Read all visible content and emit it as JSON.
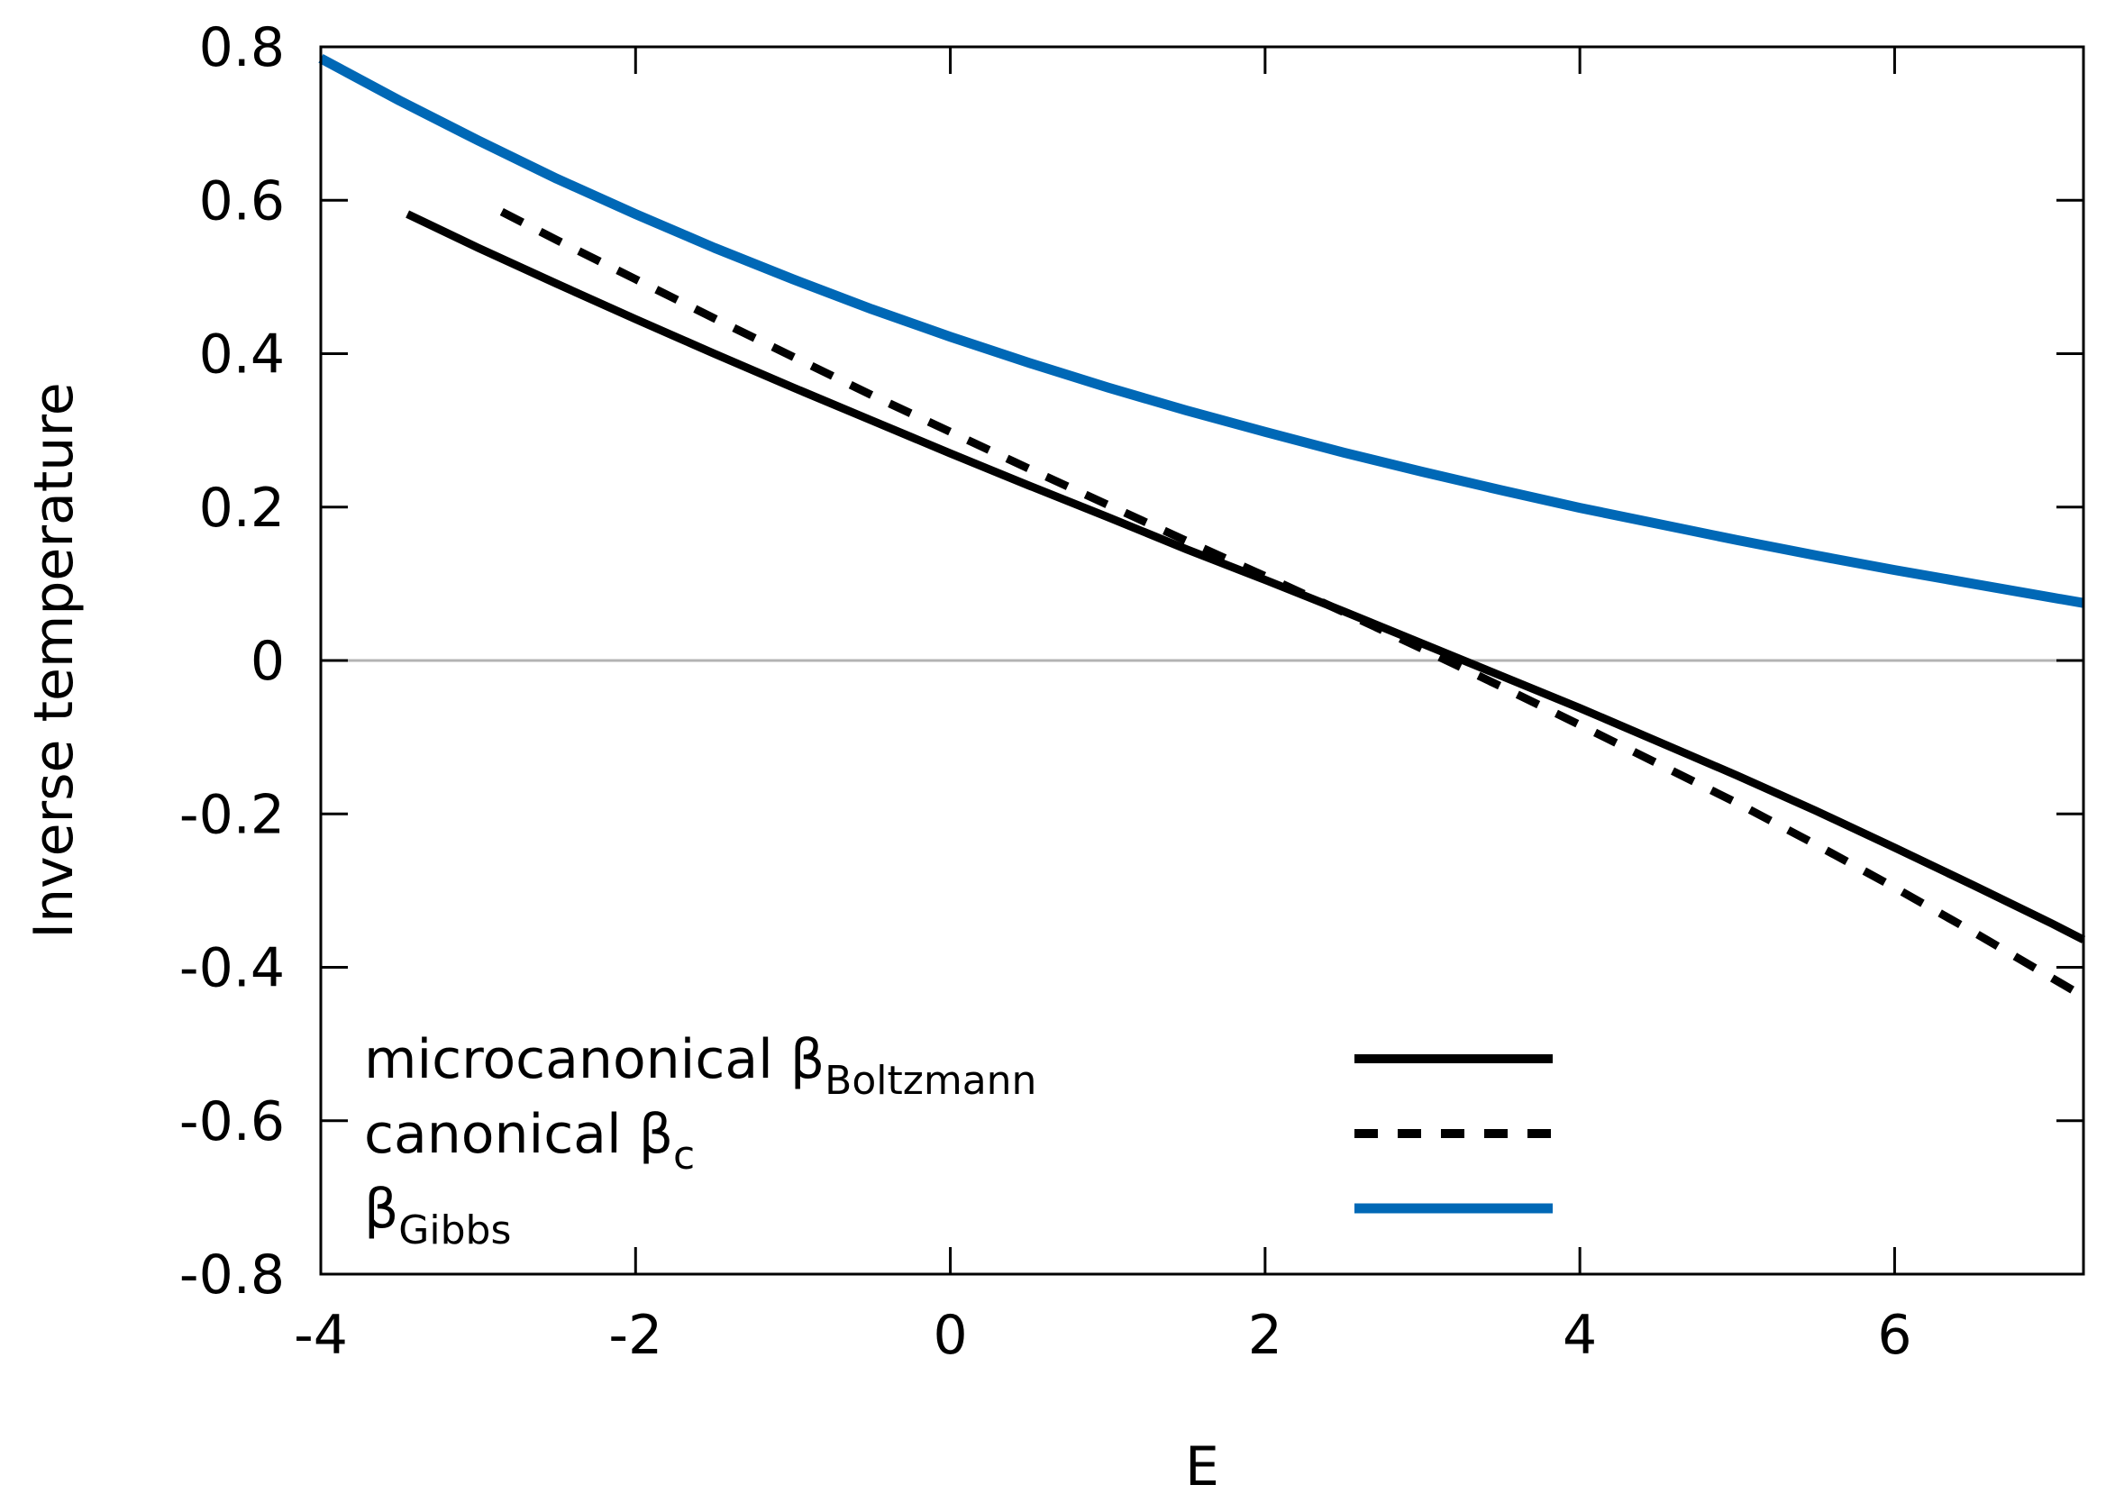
{
  "chart_data": {
    "type": "line",
    "title": "",
    "xlabel": "E",
    "ylabel": "Inverse temperature",
    "xlim": [
      -4,
      7.2
    ],
    "ylim": [
      -0.8,
      0.8
    ],
    "xticks": [
      -4,
      -2,
      0,
      2,
      4,
      6
    ],
    "yticks": [
      -0.8,
      -0.6,
      -0.4,
      -0.2,
      0,
      0.2,
      0.4,
      0.6,
      0.8
    ],
    "xtick_labels": [
      "-4",
      "-2",
      "0",
      "2",
      "4",
      "6"
    ],
    "ytick_labels": [
      "-0.8",
      "-0.6",
      "-0.4",
      "-0.2",
      "0",
      "0.2",
      "0.4",
      "0.6",
      "0.8"
    ],
    "zero_line": true,
    "grid": false,
    "legend_position": "bottom-left",
    "series": [
      {
        "name": "microcanonical βBoltzmann",
        "label_main": "microcanonical β",
        "label_sub": "Boltzmann",
        "style": "solid",
        "color": "#000000",
        "x": [
          -3.45,
          -3.0,
          -2.5,
          -2.0,
          -1.5,
          -1.0,
          -0.5,
          0.0,
          0.5,
          1.0,
          1.5,
          2.0,
          2.5,
          3.0,
          3.5,
          4.0,
          4.5,
          5.0,
          5.5,
          6.0,
          6.5,
          7.0,
          7.2
        ],
        "y": [
          0.582,
          0.538,
          0.491,
          0.445,
          0.4,
          0.356,
          0.313,
          0.27,
          0.228,
          0.187,
          0.145,
          0.105,
          0.064,
          0.022,
          -0.02,
          -0.062,
          -0.106,
          -0.15,
          -0.196,
          -0.244,
          -0.293,
          -0.343,
          -0.364
        ]
      },
      {
        "name": "canonical βc",
        "label_main": "canonical β",
        "label_sub": "c",
        "style": "dashed",
        "color": "#000000",
        "x": [
          -2.85,
          -2.5,
          -2.0,
          -1.5,
          -1.0,
          -0.5,
          0.0,
          0.5,
          1.0,
          1.5,
          2.0,
          2.5,
          3.0,
          3.5,
          4.0,
          4.5,
          5.0,
          5.5,
          6.0,
          6.5,
          7.0,
          7.15
        ],
        "y": [
          0.585,
          0.548,
          0.497,
          0.446,
          0.396,
          0.346,
          0.298,
          0.25,
          0.203,
          0.156,
          0.11,
          0.063,
          0.015,
          -0.034,
          -0.084,
          -0.135,
          -0.186,
          -0.24,
          -0.296,
          -0.354,
          -0.414,
          -0.432
        ]
      },
      {
        "name": "βGibbs",
        "label_main": "β",
        "label_sub": "Gibbs",
        "style": "solid",
        "color": "#0068b6",
        "x": [
          -4.0,
          -3.5,
          -3.0,
          -2.5,
          -2.0,
          -1.5,
          -1.0,
          -0.5,
          0.0,
          0.5,
          1.0,
          1.5,
          2.0,
          2.5,
          3.0,
          3.5,
          4.0,
          4.5,
          5.0,
          5.5,
          6.0,
          6.5,
          7.0,
          7.2
        ],
        "y": [
          0.785,
          0.73,
          0.678,
          0.628,
          0.582,
          0.538,
          0.497,
          0.458,
          0.422,
          0.388,
          0.356,
          0.326,
          0.298,
          0.271,
          0.246,
          0.222,
          0.199,
          0.178,
          0.157,
          0.137,
          0.118,
          0.1,
          0.082,
          0.075
        ]
      }
    ]
  }
}
